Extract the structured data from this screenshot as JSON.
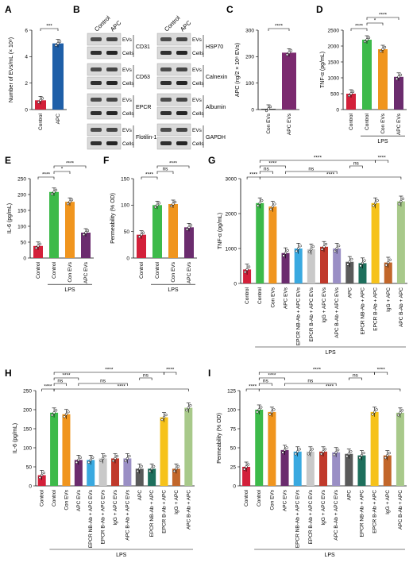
{
  "figure": {
    "panel_letters": [
      "A",
      "B",
      "C",
      "D",
      "E",
      "F",
      "G",
      "H",
      "I"
    ],
    "blot": {
      "col_labels": [
        "Control",
        "APC"
      ],
      "left_markers": [
        "CD31",
        "CD63",
        "EPCR",
        "Flotilin-1"
      ],
      "right_markers": [
        "HSP70",
        "Calnexin",
        "Albumin",
        "GAPDH"
      ],
      "row_labels": [
        "EVs",
        "Cells"
      ]
    }
  },
  "chart_data": [
    {
      "id": "A",
      "type": "bar",
      "categories": [
        "Control",
        "APC"
      ],
      "values": [
        0.7,
        5.0
      ],
      "colors": [
        "#d3203a",
        "#1f5fa8"
      ],
      "ylabel": "Number of EVs/mL (× 10⁸)",
      "ylim": [
        0,
        6
      ],
      "yticks": [
        "0",
        "2",
        "4",
        "6"
      ],
      "sig": [
        "***"
      ]
    },
    {
      "id": "C",
      "type": "bar",
      "categories": [
        "Con EVs",
        "APC EVs"
      ],
      "values": [
        3,
        215
      ],
      "colors": [
        "#3a3a3a",
        "#7b2a6f"
      ],
      "ylabel": "APC (ng/2 × 10⁸ EVs)",
      "ylim": [
        0,
        300
      ],
      "yticks": [
        "0",
        "100",
        "200",
        "300"
      ],
      "sig": [
        "****"
      ]
    },
    {
      "id": "D",
      "type": "bar",
      "categories": [
        "Control",
        "Control",
        "Con EVs",
        "APC EVs"
      ],
      "values": [
        500,
        2200,
        1900,
        1030
      ],
      "colors": [
        "#d3203a",
        "#3dba4a",
        "#f0951e",
        "#6b2c6e"
      ],
      "ylabel": "TNF-α (pg/mL)",
      "ylim": [
        0,
        2500
      ],
      "yticks": [
        "0",
        "500",
        "1000",
        "1500",
        "2000",
        "2500"
      ],
      "group_label": "LPS",
      "sig": [
        "****",
        "*",
        "****"
      ]
    },
    {
      "id": "E",
      "type": "bar",
      "categories": [
        "Control",
        "Control",
        "Con EVs",
        "APC EVs"
      ],
      "values": [
        38,
        208,
        177,
        80
      ],
      "colors": [
        "#d3203a",
        "#3dba4a",
        "#f0951e",
        "#6b2c6e"
      ],
      "ylabel": "IL-6 (pg/mL)",
      "ylim": [
        0,
        250
      ],
      "yticks": [
        "0",
        "50",
        "100",
        "150",
        "200",
        "250"
      ],
      "group_label": "LPS",
      "sig": [
        "****",
        "*",
        "****"
      ]
    },
    {
      "id": "F",
      "type": "bar",
      "categories": [
        "Control",
        "Control",
        "Con EVs",
        "APC EVs"
      ],
      "values": [
        44,
        100,
        102,
        58
      ],
      "colors": [
        "#d3203a",
        "#3dba4a",
        "#f0951e",
        "#6b2c6e"
      ],
      "ylabel": "Permeability (% OD)",
      "ylim": [
        0,
        150
      ],
      "yticks": [
        "0",
        "50",
        "100",
        "150"
      ],
      "group_label": "LPS",
      "sig": [
        "****",
        "ns",
        "****"
      ]
    },
    {
      "id": "G",
      "type": "bar",
      "categories": [
        "Control",
        "Control",
        "Con EVs",
        "APC EVs",
        "EPCR NB-Ab + APC EVs",
        "EPCR B-Ab + APC EVs",
        "IgG + APC EVs",
        "APC B-Ab + APC EVs",
        "APC",
        "EPCR NB-Ab + APC",
        "EPCR B-Ab + APC",
        "IgG + APC",
        "APC B-Ab + APC"
      ],
      "values": [
        400,
        2300,
        2200,
        870,
        1000,
        980,
        1050,
        1000,
        620,
        580,
        2300,
        600,
        2350
      ],
      "colors": [
        "#d3203a",
        "#3dba4a",
        "#f0951e",
        "#6b2c6e",
        "#39a9e0",
        "#c9c9c9",
        "#c0392b",
        "#9a8fc5",
        "#5a5a5a",
        "#1d6f5c",
        "#f6c21a",
        "#c2662a",
        "#a8c98a"
      ],
      "ylabel": "TNF-α (pg/mL)",
      "ylim": [
        0,
        3000
      ],
      "yticks": [
        "0",
        "1000",
        "2000",
        "3000"
      ],
      "group_label": "LPS",
      "sig": [
        "****",
        "ns",
        "****",
        "****",
        "****",
        "ns",
        "ns",
        "****",
        "****"
      ]
    },
    {
      "id": "H",
      "type": "bar",
      "categories": [
        "Control",
        "Control",
        "Con EVs",
        "APC EVs",
        "EPCR NB-Ab + APC EVs",
        "EPCR B-Ab + APC EVs",
        "IgG + APC EVs",
        "APC B-Ab + APC EVs",
        "APC",
        "EPCR NB-Ab + APC",
        "EPCR B-Ab + APC",
        "IgG + APC",
        "APC B-Ab + APC"
      ],
      "values": [
        28,
        192,
        188,
        68,
        68,
        72,
        72,
        72,
        45,
        45,
        180,
        45,
        205
      ],
      "colors": [
        "#d3203a",
        "#3dba4a",
        "#f0951e",
        "#6b2c6e",
        "#39a9e0",
        "#c9c9c9",
        "#c0392b",
        "#9a8fc5",
        "#5a5a5a",
        "#1d6f5c",
        "#f6c21a",
        "#c2662a",
        "#a8c98a"
      ],
      "ylabel": "IL-6 (pg/mL)",
      "ylim": [
        0,
        250
      ],
      "yticks": [
        "0",
        "50",
        "100",
        "150",
        "200",
        "250"
      ],
      "group_label": "LPS",
      "sig": [
        "****",
        "ns",
        "****",
        "****",
        "****",
        "ns",
        "ns",
        "****",
        "****"
      ]
    },
    {
      "id": "I",
      "type": "bar",
      "categories": [
        "Control",
        "Control",
        "Con EVs",
        "APC EVs",
        "EPCR NB-Ab + APC EVs",
        "EPCR B-Ab + APC EVs",
        "IgG + APC EVs",
        "APC B-Ab + APC EVs",
        "APC",
        "EPCR NB-Ab + APC",
        "EPCR B-Ab + APC",
        "IgG + APC",
        "APC B-Ab + APC"
      ],
      "values": [
        25,
        100,
        97,
        47,
        45,
        45,
        45,
        44,
        42,
        40,
        97,
        40,
        96
      ],
      "colors": [
        "#d3203a",
        "#3dba4a",
        "#f0951e",
        "#6b2c6e",
        "#39a9e0",
        "#c9c9c9",
        "#c0392b",
        "#9a8fc5",
        "#5a5a5a",
        "#1d6f5c",
        "#f6c21a",
        "#c2662a",
        "#a8c98a"
      ],
      "ylabel": "Permeability (% OD)",
      "ylim": [
        0,
        125
      ],
      "yticks": [
        "0",
        "25",
        "50",
        "75",
        "100",
        "125"
      ],
      "group_label": "LPS",
      "sig": [
        "****",
        "ns",
        "****",
        "****",
        "****",
        "ns",
        "ns",
        "****",
        "****"
      ]
    }
  ]
}
